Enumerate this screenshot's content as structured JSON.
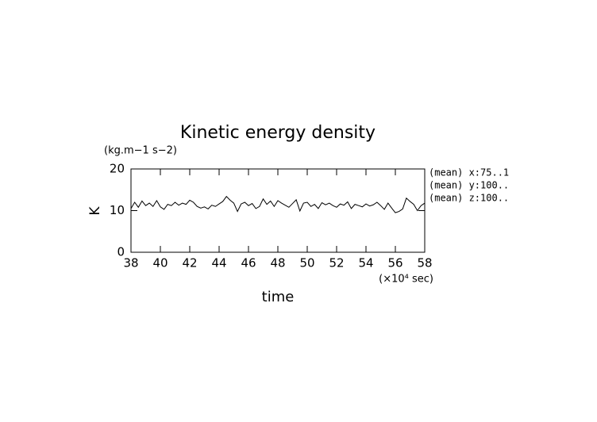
{
  "chart_data": {
    "type": "line",
    "title": "Kinetic energy density",
    "y_units": "(kg.m−1 s−2)",
    "y_label": "K",
    "x_label": "time",
    "x_units": "(×10⁴ sec)",
    "annotations": [
      "(mean) x:75..1",
      "(mean) y:100..",
      "(mean) z:100.."
    ],
    "xlim": [
      38,
      58
    ],
    "xticks": [
      38,
      40,
      42,
      44,
      46,
      48,
      50,
      52,
      54,
      56,
      58
    ],
    "ylim": [
      0,
      20
    ],
    "yticks": [
      0,
      10,
      20
    ],
    "grid": false,
    "series": [
      {
        "color": "#000000",
        "x": [
          38,
          38.25,
          38.5,
          38.75,
          39,
          39.25,
          39.5,
          39.75,
          40,
          40.25,
          40.5,
          40.75,
          41,
          41.25,
          41.5,
          41.75,
          42,
          42.25,
          42.5,
          42.75,
          43,
          43.25,
          43.5,
          43.75,
          44,
          44.25,
          44.5,
          44.75,
          45,
          45.25,
          45.5,
          45.75,
          46,
          46.25,
          46.5,
          46.75,
          47,
          47.25,
          47.5,
          47.75,
          48,
          48.25,
          48.5,
          48.75,
          49,
          49.25,
          49.5,
          49.75,
          50,
          50.25,
          50.5,
          50.75,
          51,
          51.25,
          51.5,
          51.75,
          52,
          52.25,
          52.5,
          52.75,
          53,
          53.25,
          53.5,
          53.75,
          54,
          54.25,
          54.5,
          54.75,
          55,
          55.25,
          55.5,
          55.75,
          56,
          56.25,
          56.5,
          56.75,
          57,
          57.25,
          57.5,
          57.75,
          58
        ],
        "values": [
          10.5,
          12.0,
          10.8,
          12.3,
          11.2,
          11.8,
          11.0,
          12.4,
          10.9,
          10.3,
          11.5,
          11.2,
          12.0,
          11.3,
          11.8,
          11.5,
          12.5,
          12.0,
          11.0,
          10.6,
          10.9,
          10.4,
          11.3,
          11.0,
          11.6,
          12.2,
          13.4,
          12.5,
          11.8,
          9.8,
          11.6,
          12.0,
          11.2,
          11.7,
          10.5,
          11.0,
          12.8,
          11.5,
          12.3,
          11.0,
          12.4,
          11.8,
          11.3,
          10.8,
          11.7,
          12.6,
          9.9,
          11.8,
          12.0,
          11.0,
          11.5,
          10.5,
          11.9,
          11.4,
          11.8,
          11.2,
          10.8,
          11.6,
          11.3,
          12.1,
          10.5,
          11.5,
          11.2,
          10.9,
          11.6,
          11.1,
          11.4,
          12.0,
          11.2,
          10.3,
          11.8,
          10.6,
          9.5,
          9.8,
          10.4,
          13.0,
          12.2,
          11.5,
          10.0,
          11.2,
          11.8
        ]
      }
    ]
  }
}
